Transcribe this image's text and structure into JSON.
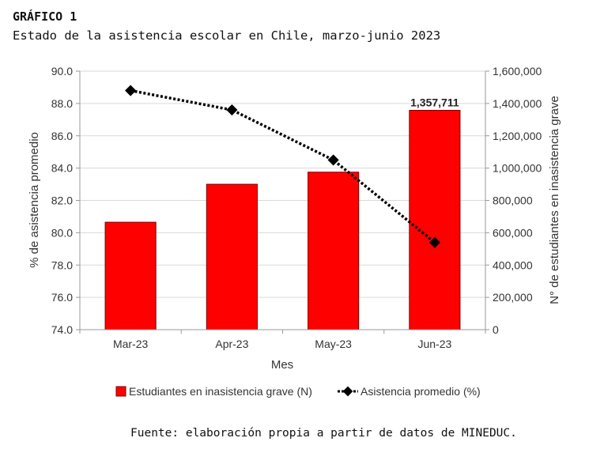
{
  "figure": {
    "label": "GRÁFICO 1",
    "title": "Estado de la asistencia escolar en Chile, marzo-junio 2023",
    "source": "Fuente: elaboración propia a partir de datos de MINEDUC."
  },
  "colors": {
    "bar": "#ff0000",
    "bar_stroke": "#7a0000",
    "line": "#000000",
    "grid": "#d9d9d9",
    "axis": "#999999"
  },
  "chart_data": {
    "type": "bar+line",
    "categories": [
      "Mar-23",
      "Apr-23",
      "May-23",
      "Jun-23"
    ],
    "xlabel": "Mes",
    "y_left": {
      "label": "% de asistencia promedio",
      "range": [
        74.0,
        90.0
      ],
      "ticks": [
        "74.0",
        "76.0",
        "78.0",
        "80.0",
        "82.0",
        "84.0",
        "86.0",
        "88.0",
        "90.0"
      ]
    },
    "y_right": {
      "label": "N° de estudiantes en inasistencia grave",
      "range": [
        0,
        1600000
      ],
      "ticks": [
        "0",
        "200,000",
        "400,000",
        "600,000",
        "800,000",
        "1,000,000",
        "1,200,000",
        "1,400,000",
        "1,600,000"
      ]
    },
    "series": [
      {
        "name": "Estudiantes en inasistencia grave (N)",
        "type": "bar",
        "axis": "right",
        "values": [
          665000,
          900000,
          975000,
          1357711
        ],
        "labels": [
          "",
          "",
          "",
          "1,357,711"
        ]
      },
      {
        "name": "Asistencia promedio (%)",
        "type": "line",
        "axis": "left",
        "values": [
          88.8,
          87.6,
          84.5,
          79.4
        ]
      }
    ],
    "grid": true,
    "legend_position": "bottom"
  }
}
